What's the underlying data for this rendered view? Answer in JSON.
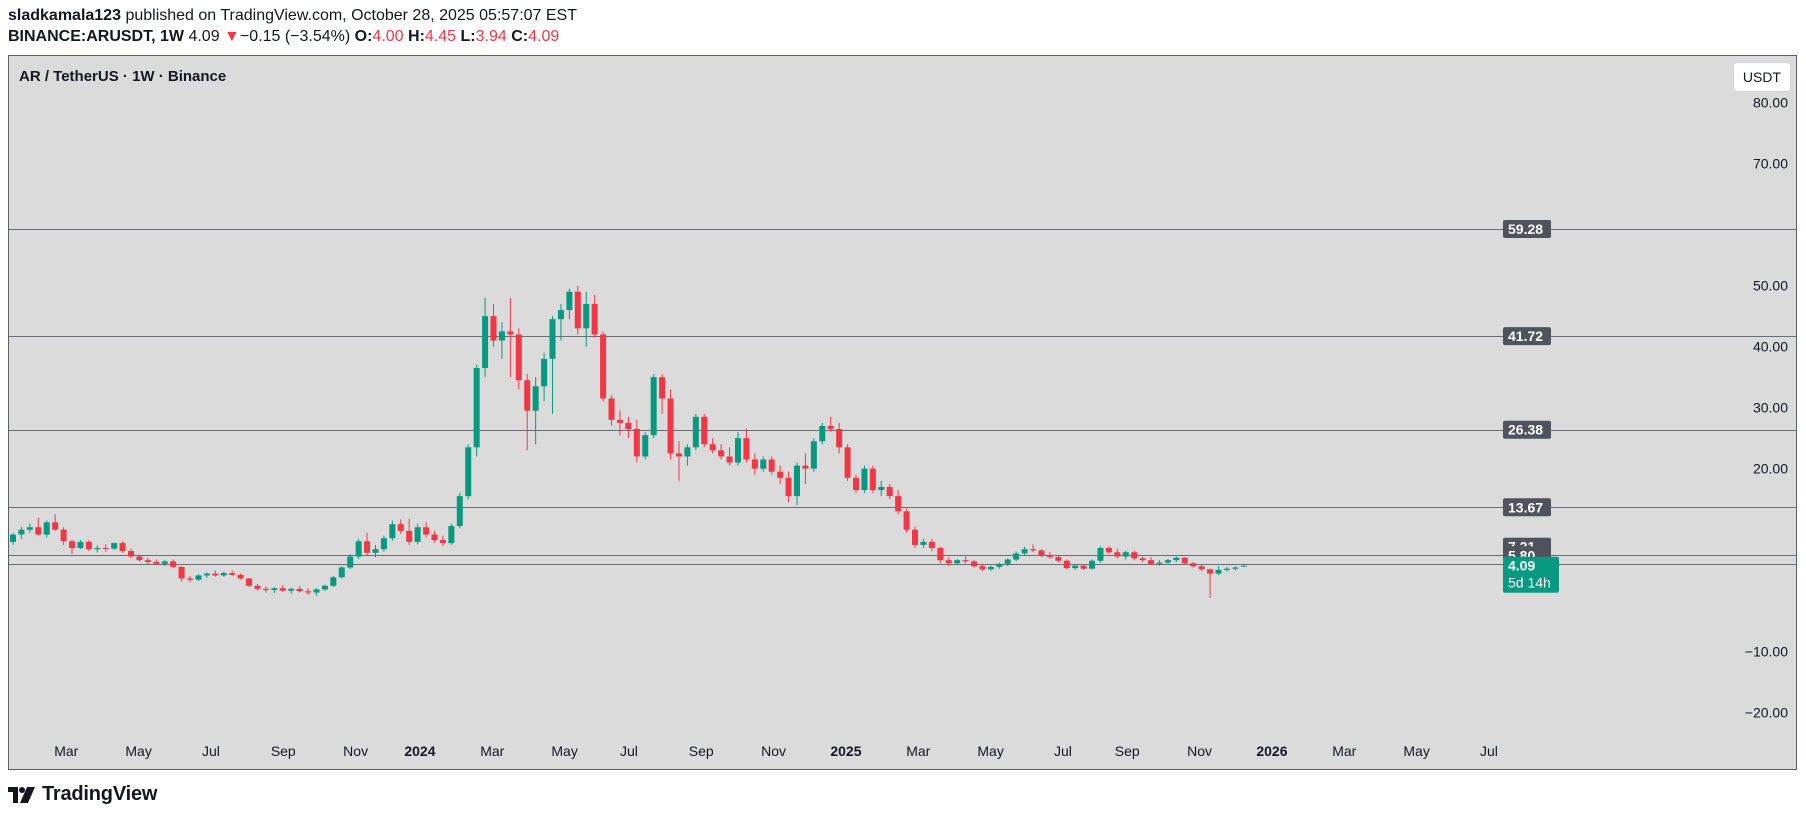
{
  "header": {
    "publisher": "sladkamala123",
    "published_text": "published on TradingView.com, October 28, 2025 05:57:07 EST",
    "symbol": "BINANCE:ARUSDT, 1W",
    "last": "4.09",
    "change_arrow": "▼",
    "change": "−0.15 (−3.54%)",
    "o_label": "O:",
    "o_value": "4.00",
    "h_label": "H:",
    "h_value": "4.45",
    "l_label": "L:",
    "l_value": "3.94",
    "c_label": "C:",
    "c_value": "4.09"
  },
  "legend_title": "AR / TetherUS · 1W · Binance",
  "unit_button": "USDT",
  "footer": {
    "brand": "TradingView",
    "logo_icon": "tradingview-logo-icon"
  },
  "colors": {
    "up": "#089981",
    "down": "#f23645",
    "background": "#dbdbdb",
    "level_line": "#6a6d78",
    "price_tag": "#089981",
    "level_tag": "#50535e"
  },
  "chart_data": {
    "type": "candlestick",
    "title": "AR / TetherUS · 1W · Binance",
    "ylim": [
      -23,
      86
    ],
    "y_ticks": [
      80,
      70,
      50,
      40,
      30,
      20,
      -10,
      -20
    ],
    "y_tick_labels": [
      "80.00",
      "70.00",
      "50.00",
      "40.00",
      "30.00",
      "20.00",
      "−10.00",
      "−20.00"
    ],
    "x_range": [
      0,
      1.85
    ],
    "x_ticks": [
      {
        "t": 0.07,
        "label": "Mar",
        "bold": false
      },
      {
        "t": 0.16,
        "label": "May",
        "bold": false
      },
      {
        "t": 0.25,
        "label": "Jul",
        "bold": false
      },
      {
        "t": 0.34,
        "label": "Sep",
        "bold": false
      },
      {
        "t": 0.43,
        "label": "Nov",
        "bold": false
      },
      {
        "t": 0.51,
        "label": "2024",
        "bold": true
      },
      {
        "t": 0.6,
        "label": "Mar",
        "bold": false
      },
      {
        "t": 0.69,
        "label": "May",
        "bold": false
      },
      {
        "t": 0.77,
        "label": "Jul",
        "bold": false
      },
      {
        "t": 0.86,
        "label": "Sep",
        "bold": false
      },
      {
        "t": 0.95,
        "label": "Nov",
        "bold": false
      },
      {
        "t": 1.04,
        "label": "2025",
        "bold": true
      },
      {
        "t": 1.13,
        "label": "Mar",
        "bold": false
      },
      {
        "t": 1.22,
        "label": "May",
        "bold": false
      },
      {
        "t": 1.31,
        "label": "Jul",
        "bold": false
      },
      {
        "t": 1.39,
        "label": "Sep",
        "bold": false
      },
      {
        "t": 1.48,
        "label": "Nov",
        "bold": false
      },
      {
        "t": 1.57,
        "label": "2026",
        "bold": true
      },
      {
        "t": 1.66,
        "label": "Mar",
        "bold": false
      },
      {
        "t": 1.75,
        "label": "May",
        "bold": false
      },
      {
        "t": 1.84,
        "label": "Jul",
        "bold": false
      }
    ],
    "horizontal_levels": [
      {
        "value": 59.28,
        "label": "59.28"
      },
      {
        "value": 41.72,
        "label": "41.72"
      },
      {
        "value": 26.38,
        "label": "26.38"
      },
      {
        "value": 13.67,
        "label": "13.67"
      },
      {
        "value": 7.21,
        "label": "7.21",
        "line": false
      },
      {
        "value": 5.8,
        "label": "5.80"
      }
    ],
    "last_price": {
      "value": 4.09,
      "label": "4.09",
      "countdown": "5d 14h",
      "line_value": 4.4
    },
    "candles": [
      [
        8.0,
        9.5,
        7.5,
        9.2
      ],
      [
        9.2,
        10.5,
        8.5,
        10.0
      ],
      [
        10.0,
        11.0,
        9.5,
        10.4
      ],
      [
        10.4,
        12.0,
        9.0,
        9.2
      ],
      [
        9.2,
        11.5,
        8.7,
        11.2
      ],
      [
        11.2,
        12.5,
        9.8,
        10.0
      ],
      [
        10.0,
        10.4,
        7.5,
        8.1
      ],
      [
        8.1,
        8.4,
        6.0,
        7.0
      ],
      [
        7.0,
        8.3,
        6.8,
        8.0
      ],
      [
        8.0,
        8.3,
        6.5,
        6.8
      ],
      [
        6.8,
        7.4,
        6.3,
        7.0
      ],
      [
        7.0,
        7.6,
        6.4,
        6.9
      ],
      [
        6.9,
        7.9,
        6.7,
        7.8
      ],
      [
        7.8,
        8.1,
        6.2,
        6.5
      ],
      [
        6.5,
        6.9,
        5.3,
        5.6
      ],
      [
        5.6,
        5.9,
        4.8,
        5.0
      ],
      [
        5.0,
        5.4,
        4.3,
        4.7
      ],
      [
        4.7,
        5.1,
        4.2,
        4.4
      ],
      [
        4.4,
        5.0,
        4.0,
        4.8
      ],
      [
        4.8,
        5.1,
        3.7,
        3.9
      ],
      [
        3.9,
        4.0,
        1.5,
        2.0
      ],
      [
        2.0,
        2.4,
        1.4,
        1.8
      ],
      [
        1.8,
        2.7,
        1.6,
        2.5
      ],
      [
        2.5,
        3.0,
        2.1,
        2.8
      ],
      [
        2.8,
        3.3,
        2.3,
        2.5
      ],
      [
        2.5,
        3.1,
        2.3,
        2.9
      ],
      [
        2.9,
        3.3,
        2.4,
        2.6
      ],
      [
        2.6,
        2.8,
        1.8,
        2.0
      ],
      [
        2.0,
        2.1,
        0.6,
        0.8
      ],
      [
        0.8,
        1.1,
        0.0,
        0.3
      ],
      [
        0.3,
        0.7,
        -0.3,
        0.1
      ],
      [
        0.1,
        0.6,
        -0.4,
        0.4
      ],
      [
        0.4,
        0.9,
        -0.2,
        0.0
      ],
      [
        0.0,
        0.5,
        -0.5,
        0.3
      ],
      [
        0.3,
        0.8,
        -0.3,
        -0.1
      ],
      [
        -0.1,
        0.4,
        -0.7,
        -0.3
      ],
      [
        -0.3,
        0.4,
        -0.8,
        0.2
      ],
      [
        0.2,
        1.0,
        0.0,
        0.8
      ],
      [
        0.8,
        2.4,
        0.6,
        2.2
      ],
      [
        2.2,
        4.0,
        2.0,
        3.8
      ],
      [
        3.8,
        6.0,
        3.5,
        5.6
      ],
      [
        5.6,
        8.5,
        5.2,
        8.1
      ],
      [
        8.1,
        9.5,
        5.8,
        6.2
      ],
      [
        6.2,
        7.5,
        5.5,
        6.8
      ],
      [
        6.8,
        9.0,
        6.4,
        8.6
      ],
      [
        8.6,
        11.5,
        8.2,
        10.9
      ],
      [
        10.9,
        11.7,
        9.3,
        9.8
      ],
      [
        9.8,
        11.8,
        7.5,
        8.0
      ],
      [
        8.0,
        11.0,
        7.6,
        10.4
      ],
      [
        10.4,
        11.2,
        8.7,
        9.2
      ],
      [
        9.2,
        9.8,
        7.9,
        8.3
      ],
      [
        8.3,
        9.0,
        7.3,
        7.8
      ],
      [
        7.8,
        11.0,
        7.5,
        10.6
      ],
      [
        10.6,
        16.0,
        10.2,
        15.5
      ],
      [
        15.5,
        24.0,
        15.0,
        23.5
      ],
      [
        23.5,
        37.0,
        22.0,
        36.5
      ],
      [
        36.5,
        48.0,
        35.0,
        45.0
      ],
      [
        45.0,
        47.0,
        40.0,
        41.0
      ],
      [
        41.0,
        44.0,
        38.0,
        42.5
      ],
      [
        42.5,
        48.0,
        35.0,
        42.0
      ],
      [
        42.0,
        43.0,
        33.0,
        34.5
      ],
      [
        34.5,
        35.5,
        23.0,
        29.5
      ],
      [
        29.5,
        35.0,
        24.0,
        33.5
      ],
      [
        33.5,
        39.0,
        31.0,
        38.0
      ],
      [
        38.0,
        45.0,
        29.0,
        44.5
      ],
      [
        44.5,
        47.0,
        41.0,
        46.0
      ],
      [
        46.0,
        49.5,
        44.5,
        49.0
      ],
      [
        49.0,
        50.0,
        42.0,
        43.0
      ],
      [
        43.0,
        49.0,
        40.0,
        47.0
      ],
      [
        47.0,
        48.5,
        41.5,
        42.0
      ],
      [
        42.0,
        42.5,
        31.0,
        31.5
      ],
      [
        31.5,
        32.0,
        27.0,
        28.0
      ],
      [
        28.0,
        29.5,
        25.5,
        27.5
      ],
      [
        27.5,
        28.5,
        25.0,
        26.5
      ],
      [
        26.5,
        28.0,
        21.0,
        22.0
      ],
      [
        22.0,
        26.0,
        21.5,
        25.5
      ],
      [
        25.5,
        35.5,
        25.0,
        35.0
      ],
      [
        35.0,
        35.5,
        29.0,
        31.5
      ],
      [
        31.5,
        33.0,
        21.5,
        22.5
      ],
      [
        22.5,
        24.5,
        18.0,
        22.0
      ],
      [
        22.0,
        24.0,
        20.5,
        23.5
      ],
      [
        23.5,
        29.0,
        23.0,
        28.5
      ],
      [
        28.5,
        29.0,
        23.5,
        24.0
      ],
      [
        24.0,
        25.0,
        22.5,
        23.0
      ],
      [
        23.0,
        24.0,
        21.5,
        22.0
      ],
      [
        22.0,
        23.5,
        20.5,
        21.0
      ],
      [
        21.0,
        26.0,
        20.5,
        25.0
      ],
      [
        25.0,
        26.5,
        21.0,
        21.5
      ],
      [
        21.5,
        22.5,
        19.0,
        20.0
      ],
      [
        20.0,
        22.0,
        19.5,
        21.5
      ],
      [
        21.5,
        22.0,
        19.0,
        19.5
      ],
      [
        19.5,
        20.5,
        17.5,
        18.5
      ],
      [
        18.5,
        19.5,
        14.5,
        15.5
      ],
      [
        15.5,
        21.0,
        14.0,
        20.5
      ],
      [
        20.5,
        22.5,
        17.5,
        20.0
      ],
      [
        20.0,
        25.0,
        19.5,
        24.5
      ],
      [
        24.5,
        27.5,
        24.0,
        27.0
      ],
      [
        27.0,
        28.5,
        26.0,
        26.5
      ],
      [
        26.5,
        27.5,
        22.5,
        23.5
      ],
      [
        23.5,
        24.0,
        18.0,
        18.5
      ],
      [
        18.5,
        19.0,
        16.0,
        16.5
      ],
      [
        16.5,
        20.5,
        16.0,
        20.0
      ],
      [
        20.0,
        20.5,
        16.0,
        16.5
      ],
      [
        16.5,
        18.0,
        15.5,
        17.0
      ],
      [
        17.0,
        17.5,
        15.0,
        15.5
      ],
      [
        15.5,
        16.5,
        12.5,
        13.0
      ],
      [
        13.0,
        13.5,
        9.5,
        10.0
      ],
      [
        10.0,
        10.5,
        7.0,
        7.5
      ],
      [
        7.5,
        8.5,
        7.0,
        8.0
      ],
      [
        8.0,
        8.5,
        6.5,
        7.0
      ],
      [
        7.0,
        7.2,
        4.5,
        5.0
      ],
      [
        5.0,
        5.5,
        4.0,
        4.5
      ],
      [
        4.5,
        5.2,
        4.2,
        5.0
      ],
      [
        5.0,
        5.6,
        4.5,
        4.8
      ],
      [
        4.8,
        5.0,
        3.8,
        4.0
      ],
      [
        4.0,
        4.4,
        3.2,
        3.5
      ],
      [
        3.5,
        4.1,
        3.2,
        3.9
      ],
      [
        3.9,
        4.6,
        3.6,
        4.4
      ],
      [
        4.4,
        5.3,
        4.0,
        5.1
      ],
      [
        5.1,
        6.4,
        4.8,
        6.1
      ],
      [
        6.1,
        7.2,
        5.8,
        6.8
      ],
      [
        6.8,
        7.6,
        6.3,
        6.6
      ],
      [
        6.6,
        6.8,
        5.5,
        5.8
      ],
      [
        5.8,
        6.3,
        5.2,
        5.5
      ],
      [
        5.5,
        5.8,
        4.6,
        4.9
      ],
      [
        4.9,
        5.1,
        3.5,
        3.7
      ],
      [
        3.7,
        4.3,
        3.4,
        4.1
      ],
      [
        4.1,
        4.3,
        3.4,
        3.6
      ],
      [
        3.6,
        5.1,
        3.5,
        4.9
      ],
      [
        4.9,
        7.3,
        4.6,
        7.0
      ],
      [
        7.0,
        7.3,
        6.0,
        6.3
      ],
      [
        6.3,
        6.9,
        5.3,
        5.6
      ],
      [
        5.6,
        6.6,
        5.1,
        6.3
      ],
      [
        6.3,
        6.6,
        5.0,
        5.3
      ],
      [
        5.3,
        5.6,
        4.7,
        5.0
      ],
      [
        5.0,
        5.5,
        4.2,
        4.4
      ],
      [
        4.4,
        5.0,
        4.1,
        4.6
      ],
      [
        4.6,
        5.2,
        4.4,
        5.0
      ],
      [
        5.0,
        5.6,
        4.7,
        5.4
      ],
      [
        5.4,
        5.5,
        4.3,
        4.5
      ],
      [
        4.5,
        4.7,
        3.8,
        4.0
      ],
      [
        4.0,
        4.2,
        3.2,
        3.5
      ],
      [
        3.5,
        3.6,
        -1.2,
        2.8
      ],
      [
        2.8,
        4.0,
        2.6,
        3.4
      ],
      [
        3.4,
        3.9,
        3.1,
        3.6
      ],
      [
        3.6,
        4.0,
        3.3,
        3.8
      ],
      [
        4.0,
        4.45,
        3.94,
        4.09
      ]
    ]
  }
}
